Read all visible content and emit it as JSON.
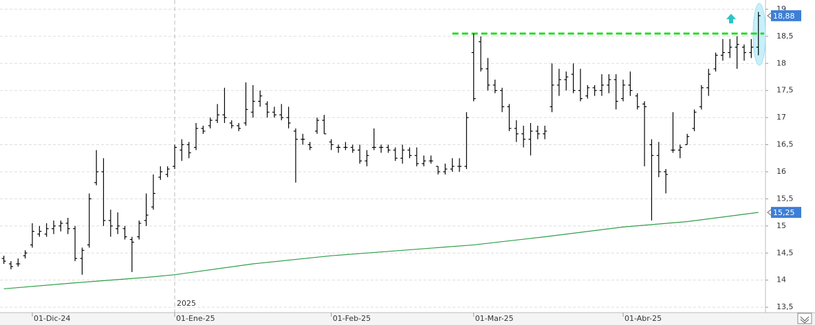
{
  "chart_data": {
    "type": "ohlc",
    "categories": [
      null,
      null,
      null,
      null,
      "01-Dic-24",
      null,
      null,
      null,
      null,
      null,
      null,
      null,
      null,
      null,
      null,
      null,
      null,
      null,
      null,
      null,
      null,
      null,
      null,
      null,
      "01-Ene-25",
      null,
      null,
      null,
      null,
      null,
      null,
      null,
      null,
      null,
      null,
      null,
      null,
      null,
      null,
      null,
      null,
      null,
      null,
      null,
      null,
      null,
      "01-Feb-25",
      null,
      null,
      null,
      null,
      null,
      null,
      null,
      null,
      null,
      null,
      null,
      null,
      null,
      null,
      null,
      null,
      null,
      null,
      null,
      "01-Mar-25",
      null,
      null,
      null,
      null,
      null,
      null,
      null,
      null,
      null,
      null,
      null,
      null,
      null,
      null,
      null,
      null,
      null,
      null,
      null,
      null,
      "01-Abr-25",
      null,
      null,
      null,
      null,
      null,
      null,
      null,
      null,
      null,
      null,
      null,
      null,
      null,
      null,
      null,
      null,
      null,
      null,
      null
    ],
    "year_marker": {
      "label": "2025",
      "category": 24
    },
    "series": [
      {
        "color": "#000000",
        "open": [
          14.4,
          14.3,
          14.3,
          14.45,
          14.65,
          14.85,
          14.85,
          14.95,
          15.0,
          15.05,
          14.95,
          14.4,
          14.65,
          15.8,
          16.0,
          15.1,
          14.95,
          14.95,
          14.75,
          14.8,
          15.1,
          15.35,
          15.9,
          15.95,
          16.1,
          16.4,
          16.5,
          16.45,
          16.8,
          16.85,
          16.95,
          17.05,
          16.9,
          16.85,
          16.9,
          17.1,
          17.3,
          17.25,
          17.1,
          17.05,
          17.0,
          16.75,
          16.6,
          16.5,
          16.75,
          16.95,
          16.55,
          16.45,
          16.45,
          16.45,
          16.4,
          16.2,
          16.45,
          16.45,
          16.45,
          16.4,
          16.25,
          16.4,
          16.3,
          16.15,
          16.2,
          16.1,
          16.0,
          16.05,
          16.1,
          16.1,
          18.2,
          18.4,
          17.9,
          17.6,
          17.5,
          17.2,
          16.8,
          16.7,
          16.6,
          16.75,
          16.7,
          17.2,
          17.6,
          17.7,
          17.8,
          17.5,
          17.4,
          17.55,
          17.5,
          17.6,
          17.7,
          17.35,
          17.6,
          17.4,
          17.25,
          16.5,
          16.3,
          16.0,
          16.4,
          16.4,
          16.5,
          16.8,
          17.2,
          17.55,
          17.9,
          18.15,
          18.2,
          18.3,
          18.3,
          18.2,
          18.3
        ],
        "high": [
          14.45,
          14.35,
          14.4,
          14.55,
          15.05,
          15.0,
          15.05,
          15.1,
          15.1,
          15.15,
          15.0,
          14.6,
          15.6,
          16.4,
          16.25,
          15.3,
          15.25,
          15.0,
          14.8,
          15.1,
          15.6,
          15.95,
          16.1,
          16.1,
          16.5,
          16.6,
          16.55,
          16.9,
          16.85,
          17.0,
          17.25,
          17.55,
          16.95,
          16.9,
          17.65,
          17.6,
          17.5,
          17.3,
          17.2,
          17.25,
          17.2,
          16.8,
          16.7,
          16.55,
          17.0,
          17.05,
          16.6,
          16.5,
          16.55,
          16.5,
          16.5,
          16.4,
          16.8,
          16.5,
          16.5,
          16.45,
          16.5,
          16.45,
          16.45,
          16.3,
          16.3,
          16.1,
          16.15,
          16.25,
          16.25,
          17.1,
          18.55,
          18.5,
          18.1,
          17.7,
          17.55,
          17.25,
          16.95,
          16.85,
          16.9,
          16.85,
          16.85,
          18.0,
          17.9,
          17.85,
          18.0,
          17.9,
          17.6,
          17.6,
          17.8,
          17.8,
          17.8,
          17.7,
          17.85,
          17.45,
          17.3,
          16.6,
          16.55,
          16.05,
          17.1,
          16.5,
          16.7,
          17.15,
          17.6,
          17.9,
          18.2,
          18.45,
          18.45,
          18.5,
          18.35,
          18.45,
          18.95
        ],
        "low": [
          14.3,
          14.2,
          14.25,
          14.4,
          14.6,
          14.8,
          14.8,
          14.85,
          14.9,
          14.85,
          14.35,
          14.1,
          14.6,
          15.75,
          15.0,
          14.8,
          14.85,
          14.75,
          14.15,
          14.75,
          15.0,
          15.3,
          15.85,
          15.9,
          16.05,
          16.2,
          16.25,
          16.4,
          16.7,
          16.8,
          16.9,
          16.9,
          16.8,
          16.75,
          16.85,
          17.0,
          17.2,
          17.0,
          17.0,
          16.95,
          16.8,
          15.8,
          16.5,
          16.4,
          16.7,
          16.7,
          16.4,
          16.35,
          16.4,
          16.35,
          16.15,
          16.1,
          16.4,
          16.35,
          16.35,
          16.2,
          16.15,
          16.25,
          16.1,
          16.1,
          16.15,
          15.95,
          15.95,
          16.0,
          16.0,
          16.05,
          17.3,
          17.85,
          17.5,
          17.45,
          17.1,
          16.75,
          16.55,
          16.45,
          16.3,
          16.6,
          16.6,
          17.1,
          17.4,
          17.5,
          17.45,
          17.3,
          17.35,
          17.4,
          17.4,
          17.45,
          17.15,
          17.3,
          17.4,
          17.15,
          16.1,
          15.1,
          15.9,
          15.6,
          16.35,
          16.25,
          16.5,
          16.75,
          17.15,
          17.4,
          17.85,
          18.05,
          18.1,
          17.9,
          18.05,
          18.1,
          18.15
        ],
        "close": [
          14.35,
          14.25,
          14.3,
          14.5,
          14.9,
          14.9,
          14.95,
          15.0,
          15.05,
          14.95,
          14.4,
          14.55,
          15.5,
          16.0,
          15.1,
          15.0,
          15.0,
          14.8,
          14.7,
          15.05,
          15.2,
          15.6,
          16.0,
          16.05,
          16.45,
          16.5,
          16.35,
          16.8,
          16.75,
          16.95,
          17.05,
          17.0,
          16.85,
          16.8,
          17.15,
          17.3,
          17.4,
          17.1,
          17.05,
          17.0,
          16.9,
          16.6,
          16.6,
          16.45,
          16.95,
          16.7,
          16.5,
          16.45,
          16.45,
          16.4,
          16.2,
          16.3,
          16.45,
          16.45,
          16.4,
          16.25,
          16.4,
          16.3,
          16.15,
          16.2,
          16.2,
          16.0,
          16.05,
          16.1,
          16.1,
          17.0,
          17.35,
          17.9,
          17.6,
          17.5,
          17.2,
          16.8,
          16.7,
          16.6,
          16.75,
          16.7,
          16.75,
          17.6,
          17.7,
          17.75,
          17.5,
          17.35,
          17.55,
          17.5,
          17.6,
          17.7,
          17.3,
          17.6,
          17.5,
          17.2,
          17.2,
          16.3,
          16.0,
          15.95,
          16.4,
          16.45,
          16.65,
          17.1,
          17.55,
          17.8,
          18.15,
          18.2,
          18.3,
          18.35,
          18.2,
          18.3,
          18.88
        ],
        "last_label": "18,88"
      }
    ],
    "moving_average": {
      "color": "#2e9e48",
      "x": [
        0,
        10,
        20,
        24,
        35,
        46,
        56,
        66,
        76,
        87,
        96,
        106
      ],
      "values": [
        13.84,
        13.95,
        14.05,
        14.1,
        14.3,
        14.45,
        14.55,
        14.65,
        14.8,
        14.98,
        15.08,
        15.25
      ],
      "last_label": "15,25"
    },
    "resistance": {
      "value": 18.55,
      "from": 63,
      "color": "#22dd22"
    },
    "ylim": [
      13.4,
      19.17
    ],
    "yticks": [
      {
        "value": 13.5,
        "label": "13,5"
      },
      14,
      {
        "value": 14.5,
        "label": "14,5"
      },
      15,
      {
        "value": 15.5,
        "label": "15,5"
      },
      16,
      {
        "value": 16.5,
        "label": "16,5"
      },
      17,
      {
        "value": 17.5,
        "label": "17,5"
      },
      18,
      {
        "value": 18.5,
        "label": "18,5"
      },
      19
    ],
    "grid": true
  }
}
